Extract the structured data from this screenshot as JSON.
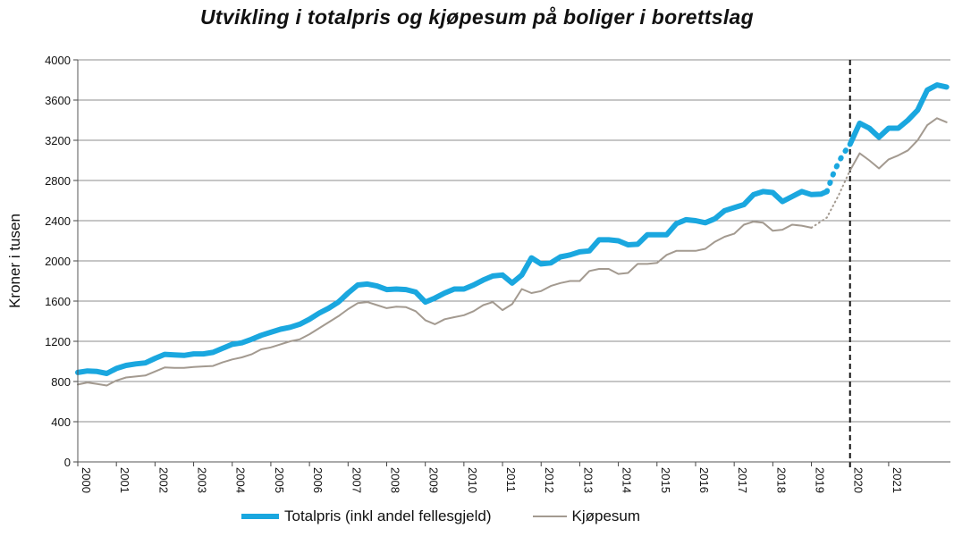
{
  "colors": {
    "total": "#1aa7df",
    "kjop": "#a39a90",
    "grid": "#8c8c8c",
    "marker": "#111111"
  },
  "chart_data": {
    "type": "line",
    "title": "Utvikling i totalpris og kjøpesum på boliger i borettslag",
    "ylabel": "Kroner i tusen",
    "xlabel": "",
    "ylim": [
      0,
      4000
    ],
    "yticks": [
      0,
      400,
      800,
      1200,
      1600,
      2000,
      2400,
      2800,
      3200,
      3600,
      4000
    ],
    "xlim": [
      2000,
      2021.75
    ],
    "xtick_labels": [
      "2000",
      "2001",
      "2002",
      "2003",
      "2004",
      "2005",
      "2006",
      "2007",
      "2008",
      "2009",
      "2010",
      "2011",
      "2012",
      "2013",
      "2014",
      "2015",
      "2016",
      "2017",
      "2018",
      "2019",
      "2020",
      "2021"
    ],
    "grid": true,
    "legend_position": "bottom",
    "vertical_marker": {
      "x": 2019.1,
      "style": "dashed"
    },
    "series": [
      {
        "name": "Totalpris (inkl andel fellesgjeld)",
        "segments": [
          {
            "style": "solid",
            "points": [
              [
                2000.0,
                890
              ],
              [
                2000.25,
                905
              ],
              [
                2000.5,
                900
              ],
              [
                2000.75,
                880
              ],
              [
                2001.0,
                930
              ],
              [
                2001.25,
                960
              ],
              [
                2001.5,
                975
              ],
              [
                2001.75,
                985
              ],
              [
                2002.0,
                1030
              ],
              [
                2002.25,
                1070
              ],
              [
                2002.5,
                1065
              ],
              [
                2002.75,
                1060
              ],
              [
                2003.0,
                1075
              ],
              [
                2003.25,
                1075
              ],
              [
                2003.5,
                1090
              ],
              [
                2003.75,
                1130
              ],
              [
                2004.0,
                1170
              ],
              [
                2004.25,
                1185
              ],
              [
                2004.5,
                1220
              ],
              [
                2004.75,
                1260
              ],
              [
                2005.0,
                1290
              ],
              [
                2005.25,
                1320
              ],
              [
                2005.5,
                1340
              ],
              [
                2005.75,
                1370
              ],
              [
                2006.0,
                1420
              ],
              [
                2006.25,
                1480
              ],
              [
                2006.5,
                1530
              ],
              [
                2006.75,
                1590
              ],
              [
                2007.0,
                1680
              ],
              [
                2007.25,
                1760
              ],
              [
                2007.5,
                1770
              ],
              [
                2007.75,
                1750
              ],
              [
                2008.0,
                1715
              ],
              [
                2008.25,
                1720
              ],
              [
                2008.5,
                1715
              ],
              [
                2008.75,
                1690
              ],
              [
                2009.0,
                1590
              ],
              [
                2009.25,
                1630
              ],
              [
                2009.5,
                1680
              ],
              [
                2009.75,
                1720
              ],
              [
                2010.0,
                1720
              ],
              [
                2010.25,
                1760
              ],
              [
                2010.5,
                1810
              ],
              [
                2010.75,
                1850
              ],
              [
                2011.0,
                1860
              ],
              [
                2011.25,
                1780
              ],
              [
                2011.5,
                1860
              ],
              [
                2011.75,
                2030
              ],
              [
                2012.0,
                1970
              ],
              [
                2012.25,
                1980
              ],
              [
                2012.5,
                2040
              ],
              [
                2012.75,
                2060
              ],
              [
                2013.0,
                2090
              ],
              [
                2013.25,
                2100
              ],
              [
                2013.5,
                2210
              ],
              [
                2013.75,
                2210
              ],
              [
                2014.0,
                2200
              ],
              [
                2014.25,
                2160
              ],
              [
                2014.5,
                2165
              ],
              [
                2014.75,
                2260
              ],
              [
                2015.0,
                2260
              ],
              [
                2015.25,
                2260
              ],
              [
                2015.5,
                2370
              ],
              [
                2015.75,
                2410
              ],
              [
                2016.0,
                2400
              ],
              [
                2016.25,
                2380
              ],
              [
                2016.5,
                2420
              ],
              [
                2016.75,
                2500
              ],
              [
                2017.0,
                2530
              ],
              [
                2017.25,
                2560
              ],
              [
                2017.5,
                2660
              ],
              [
                2017.75,
                2690
              ],
              [
                2018.0,
                2680
              ],
              [
                2018.25,
                2590
              ],
              [
                2018.5,
                2640
              ],
              [
                2018.75,
                2690
              ],
              [
                2019.0,
                2660
              ],
              [
                2019.25,
                2665
              ],
              [
                2019.4,
                2690
              ]
            ]
          },
          {
            "style": "dotted",
            "points": [
              [
                2019.4,
                2690
              ],
              [
                2019.6,
                2900
              ],
              [
                2019.8,
                3050
              ],
              [
                2020.0,
                3160
              ]
            ]
          },
          {
            "style": "solid",
            "points": [
              [
                2020.0,
                3160
              ],
              [
                2020.25,
                3370
              ],
              [
                2020.5,
                3320
              ],
              [
                2020.75,
                3230
              ],
              [
                2021.0,
                3320
              ],
              [
                2021.25,
                3320
              ],
              [
                2021.5,
                3400
              ],
              [
                2021.75,
                3500
              ],
              [
                2022.0,
                3700
              ],
              [
                2022.25,
                3750
              ],
              [
                2022.5,
                3730
              ]
            ]
          }
        ]
      },
      {
        "name": "Kjøpesum",
        "segments": [
          {
            "style": "solid",
            "points": [
              [
                2000.0,
                770
              ],
              [
                2000.25,
                790
              ],
              [
                2000.5,
                775
              ],
              [
                2000.75,
                760
              ],
              [
                2001.0,
                810
              ],
              [
                2001.25,
                840
              ],
              [
                2001.5,
                850
              ],
              [
                2001.75,
                860
              ],
              [
                2002.0,
                900
              ],
              [
                2002.25,
                940
              ],
              [
                2002.5,
                935
              ],
              [
                2002.75,
                935
              ],
              [
                2003.0,
                945
              ],
              [
                2003.25,
                950
              ],
              [
                2003.5,
                955
              ],
              [
                2003.75,
                990
              ],
              [
                2004.0,
                1020
              ],
              [
                2004.25,
                1040
              ],
              [
                2004.5,
                1070
              ],
              [
                2004.75,
                1120
              ],
              [
                2005.0,
                1140
              ],
              [
                2005.25,
                1170
              ],
              [
                2005.5,
                1200
              ],
              [
                2005.75,
                1220
              ],
              [
                2006.0,
                1270
              ],
              [
                2006.25,
                1330
              ],
              [
                2006.5,
                1390
              ],
              [
                2006.75,
                1450
              ],
              [
                2007.0,
                1520
              ],
              [
                2007.25,
                1580
              ],
              [
                2007.5,
                1590
              ],
              [
                2007.75,
                1560
              ],
              [
                2008.0,
                1530
              ],
              [
                2008.25,
                1545
              ],
              [
                2008.5,
                1540
              ],
              [
                2008.75,
                1500
              ],
              [
                2009.0,
                1410
              ],
              [
                2009.25,
                1370
              ],
              [
                2009.5,
                1420
              ],
              [
                2009.75,
                1440
              ],
              [
                2010.0,
                1460
              ],
              [
                2010.25,
                1500
              ],
              [
                2010.5,
                1560
              ],
              [
                2010.75,
                1590
              ],
              [
                2011.0,
                1510
              ],
              [
                2011.25,
                1570
              ],
              [
                2011.5,
                1720
              ],
              [
                2011.75,
                1680
              ],
              [
                2012.0,
                1700
              ],
              [
                2012.25,
                1750
              ],
              [
                2012.5,
                1780
              ],
              [
                2012.75,
                1800
              ],
              [
                2013.0,
                1800
              ],
              [
                2013.25,
                1900
              ],
              [
                2013.5,
                1920
              ],
              [
                2013.75,
                1920
              ],
              [
                2014.0,
                1870
              ],
              [
                2014.25,
                1880
              ],
              [
                2014.5,
                1970
              ],
              [
                2014.75,
                1970
              ],
              [
                2015.0,
                1980
              ],
              [
                2015.25,
                2060
              ],
              [
                2015.5,
                2100
              ],
              [
                2015.75,
                2100
              ],
              [
                2016.0,
                2100
              ],
              [
                2016.25,
                2120
              ],
              [
                2016.5,
                2190
              ],
              [
                2016.75,
                2240
              ],
              [
                2017.0,
                2270
              ],
              [
                2017.25,
                2360
              ],
              [
                2017.5,
                2390
              ],
              [
                2017.75,
                2380
              ],
              [
                2018.0,
                2300
              ],
              [
                2018.25,
                2310
              ],
              [
                2018.5,
                2360
              ],
              [
                2018.75,
                2350
              ],
              [
                2019.0,
                2330
              ]
            ]
          },
          {
            "style": "dotted",
            "points": [
              [
                2019.0,
                2330
              ],
              [
                2019.4,
                2430
              ],
              [
                2019.7,
                2650
              ],
              [
                2020.0,
                2900
              ]
            ]
          },
          {
            "style": "solid",
            "points": [
              [
                2020.0,
                2900
              ],
              [
                2020.25,
                3070
              ],
              [
                2020.5,
                3000
              ],
              [
                2020.75,
                2920
              ],
              [
                2021.0,
                3010
              ],
              [
                2021.25,
                3050
              ],
              [
                2021.5,
                3100
              ],
              [
                2021.75,
                3200
              ],
              [
                2022.0,
                3350
              ],
              [
                2022.25,
                3420
              ],
              [
                2022.5,
                3380
              ]
            ]
          }
        ]
      }
    ]
  }
}
